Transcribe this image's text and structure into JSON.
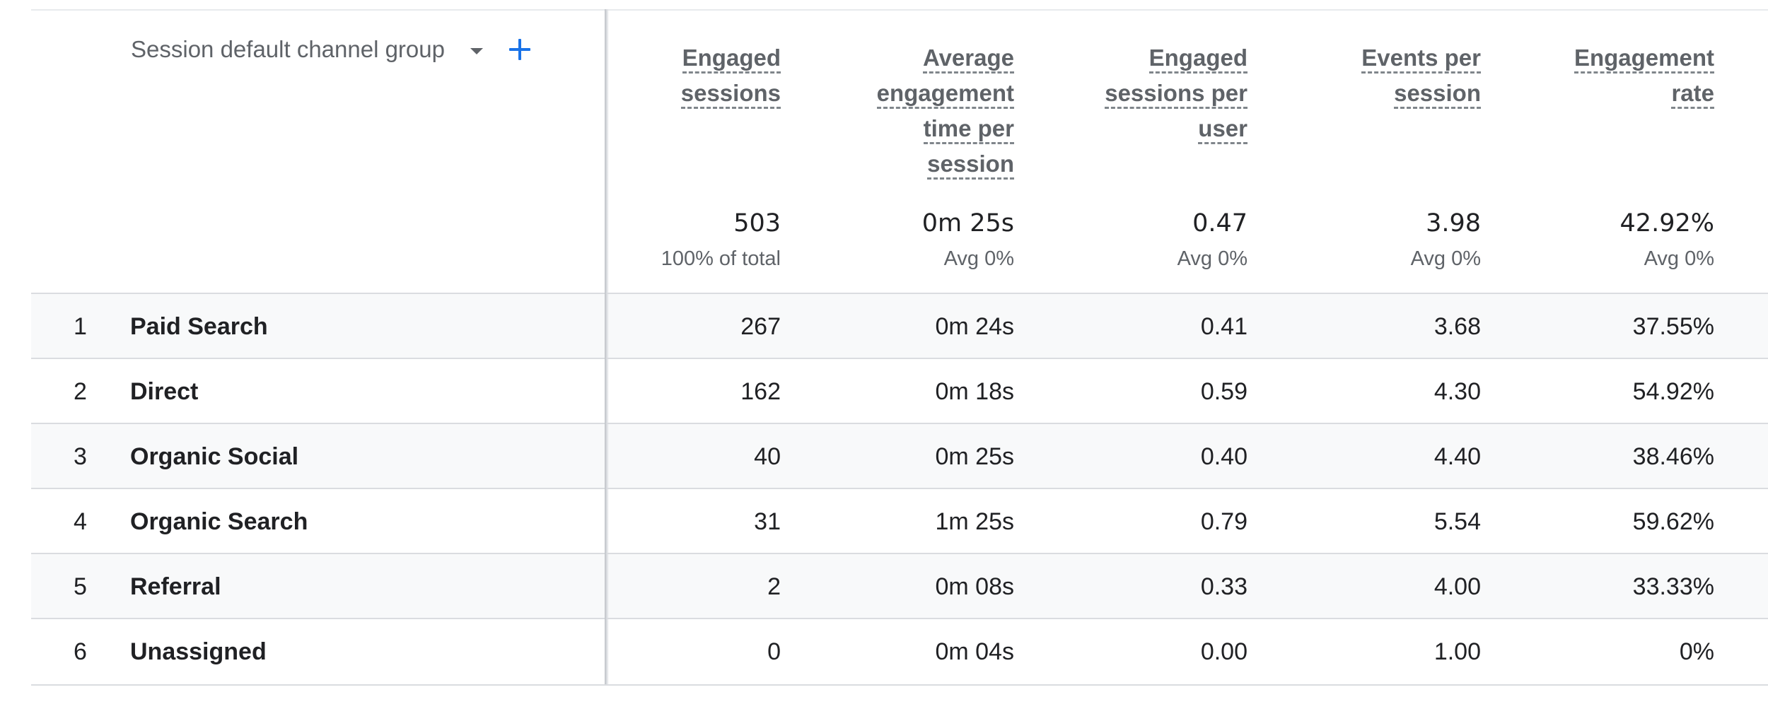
{
  "dimension": {
    "title": "Session default channel group"
  },
  "columns": [
    {
      "lines": [
        "Engaged",
        "sessions"
      ]
    },
    {
      "lines": [
        "Average",
        "engagement",
        "time per",
        "session"
      ]
    },
    {
      "lines": [
        "Engaged",
        "sessions per",
        "user"
      ]
    },
    {
      "lines": [
        "Events per",
        "session"
      ]
    },
    {
      "lines": [
        "Engagement",
        "rate"
      ]
    }
  ],
  "totals": [
    {
      "value": "503",
      "sub": "100% of total"
    },
    {
      "value": "0m 25s",
      "sub": "Avg 0%"
    },
    {
      "value": "0.47",
      "sub": "Avg 0%"
    },
    {
      "value": "3.98",
      "sub": "Avg 0%"
    },
    {
      "value": "42.92%",
      "sub": "Avg 0%"
    }
  ],
  "rows": [
    {
      "index": "1",
      "name": "Paid Search",
      "values": [
        "267",
        "0m 24s",
        "0.41",
        "3.68",
        "37.55%"
      ]
    },
    {
      "index": "2",
      "name": "Direct",
      "values": [
        "162",
        "0m 18s",
        "0.59",
        "4.30",
        "54.92%"
      ]
    },
    {
      "index": "3",
      "name": "Organic Social",
      "values": [
        "40",
        "0m 25s",
        "0.40",
        "4.40",
        "38.46%"
      ]
    },
    {
      "index": "4",
      "name": "Organic Search",
      "values": [
        "31",
        "1m 25s",
        "0.79",
        "5.54",
        "59.62%"
      ]
    },
    {
      "index": "5",
      "name": "Referral",
      "values": [
        "2",
        "0m 08s",
        "0.33",
        "4.00",
        "33.33%"
      ]
    },
    {
      "index": "6",
      "name": "Unassigned",
      "values": [
        "0",
        "0m 04s",
        "0.00",
        "1.00",
        "0%"
      ]
    }
  ]
}
